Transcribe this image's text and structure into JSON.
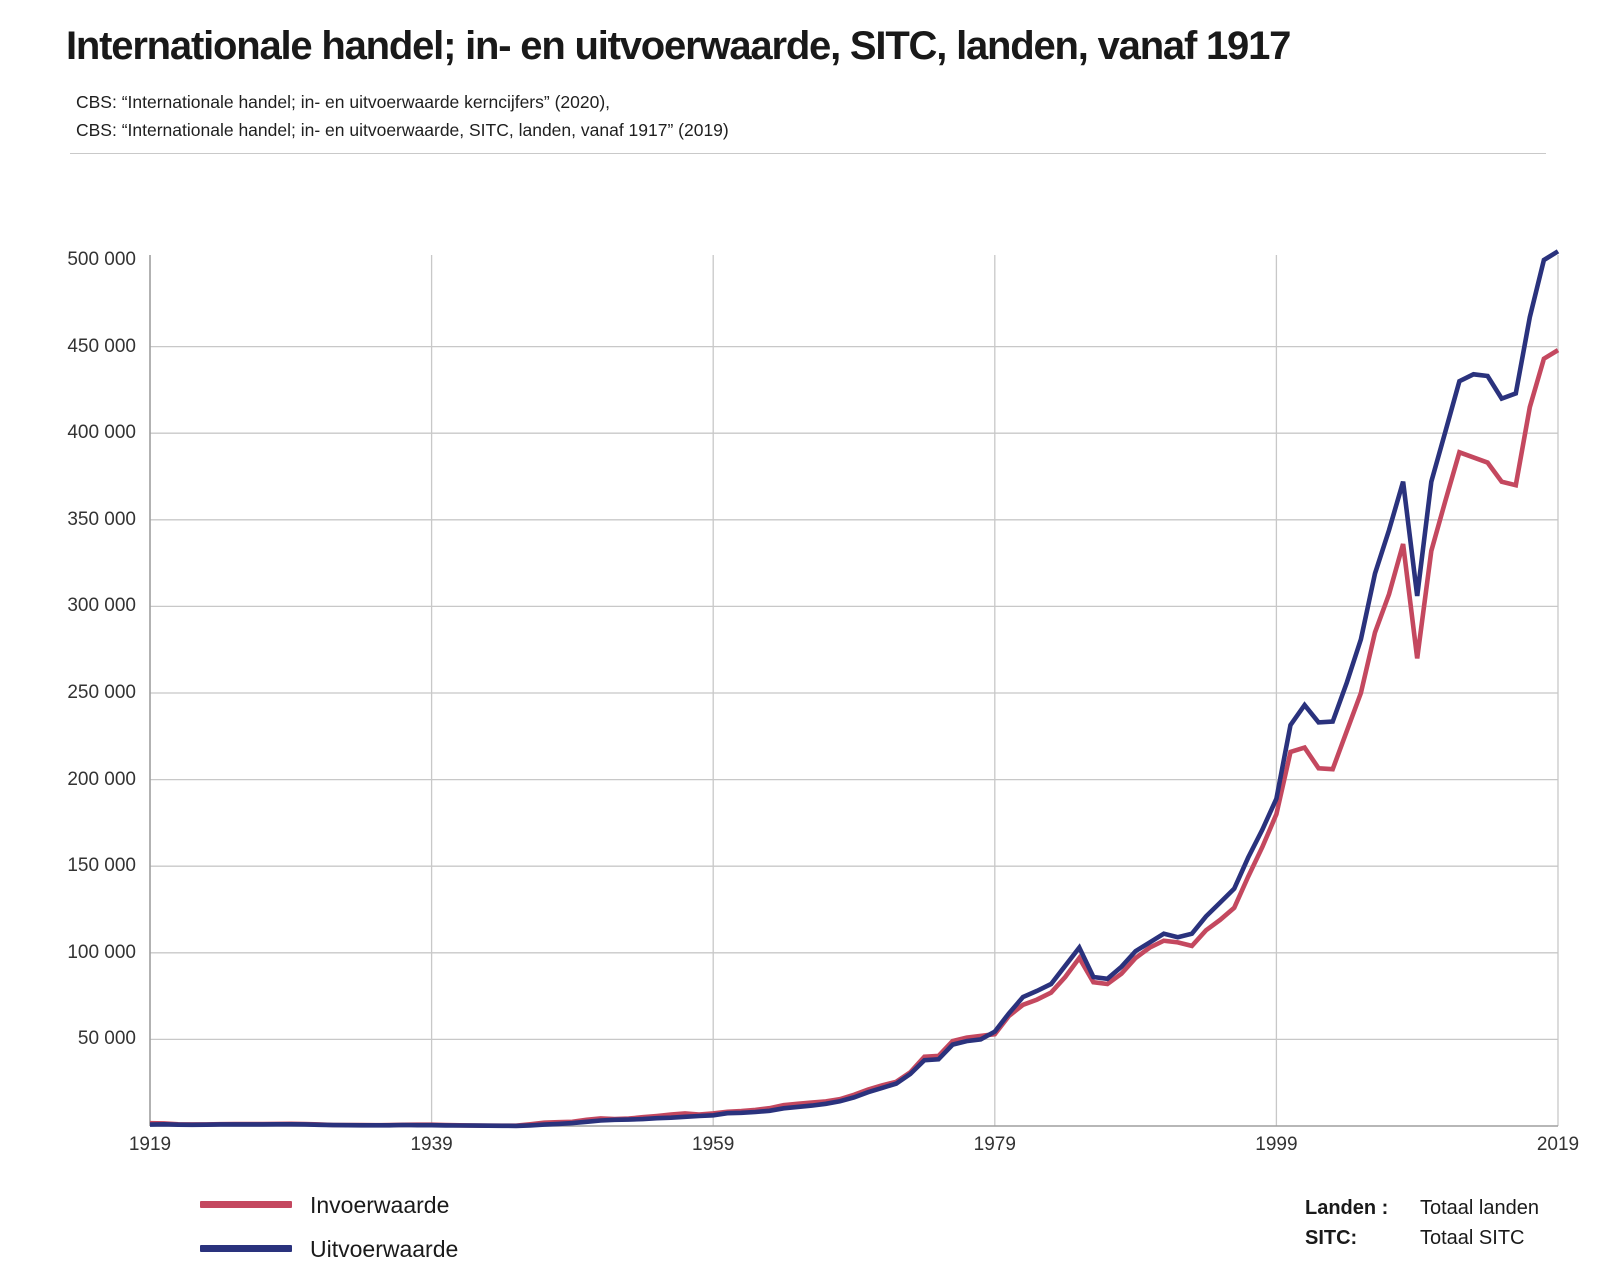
{
  "header": {
    "title": "Internationale handel; in- en uitvoerwaarde, SITC, landen, vanaf 1917",
    "source_line1": "CBS: “Internationale handel; in- en uitvoerwaarde kerncijfers” (2020),",
    "source_line2": "CBS: “Internationale handel; in- en uitvoerwaarde, SITC, landen, vanaf 1917” (2019)"
  },
  "chart_data": {
    "type": "line",
    "title": "Internationale handel; in- en uitvoerwaarde, SITC, landen, vanaf 1917",
    "xlabel": "",
    "ylabel": "",
    "xlim": [
      1919,
      2019
    ],
    "ylim": [
      0,
      500000
    ],
    "grid": true,
    "legend_position": "bottom-left",
    "xticks": [
      1919,
      1939,
      1959,
      1979,
      1999,
      2019
    ],
    "yticks": [
      50000,
      100000,
      150000,
      200000,
      250000,
      300000,
      350000,
      400000,
      450000,
      500000
    ],
    "ytick_labels": [
      "50 000",
      "100 000",
      "150 000",
      "200 000",
      "250 000",
      "300 000",
      "350 000",
      "400 000",
      "450 000",
      "500 000"
    ],
    "x": [
      1919,
      1920,
      1921,
      1922,
      1923,
      1924,
      1925,
      1926,
      1927,
      1928,
      1929,
      1930,
      1931,
      1932,
      1933,
      1934,
      1935,
      1936,
      1937,
      1938,
      1939,
      1940,
      1941,
      1942,
      1943,
      1944,
      1945,
      1946,
      1947,
      1948,
      1949,
      1950,
      1951,
      1952,
      1953,
      1954,
      1955,
      1956,
      1957,
      1958,
      1959,
      1960,
      1961,
      1962,
      1963,
      1964,
      1965,
      1966,
      1967,
      1968,
      1969,
      1970,
      1971,
      1972,
      1973,
      1974,
      1975,
      1976,
      1977,
      1978,
      1979,
      1980,
      1981,
      1982,
      1983,
      1984,
      1985,
      1986,
      1987,
      1988,
      1989,
      1990,
      1991,
      1992,
      1993,
      1994,
      1995,
      1996,
      1997,
      1998,
      1999,
      2000,
      2001,
      2002,
      2003,
      2004,
      2005,
      2006,
      2007,
      2008,
      2009,
      2010,
      2011,
      2012,
      2013,
      2014,
      2015,
      2016,
      2017,
      2018,
      2019
    ],
    "series": [
      {
        "name": "Invoerwaarde",
        "color": "#c4485f",
        "values": [
          1600,
          1500,
          1000,
          900,
          900,
          1050,
          1100,
          1100,
          1150,
          1200,
          1250,
          1100,
          900,
          600,
          550,
          500,
          450,
          500,
          700,
          730,
          750,
          500,
          400,
          300,
          200,
          150,
          150,
          1000,
          1900,
          2200,
          2400,
          3600,
          4400,
          4000,
          4300,
          5100,
          5800,
          6600,
          7300,
          6600,
          7300,
          8200,
          8600,
          9300,
          10300,
          12000,
          12800,
          13500,
          14200,
          15500,
          18000,
          21000,
          23500,
          25500,
          31000,
          40000,
          40500,
          49000,
          51000,
          52000,
          53000,
          63500,
          70000,
          73000,
          77000,
          86000,
          97000,
          83000,
          82000,
          88000,
          97000,
          103000,
          107000,
          106000,
          104000,
          113000,
          119000,
          126000,
          144000,
          161000,
          180000,
          216000,
          218500,
          206500,
          206000,
          228000,
          250000,
          285000,
          307000,
          336000,
          270000,
          332000,
          361000,
          389000,
          386000,
          383000,
          372000,
          370000,
          415000,
          443000,
          448000
        ]
      },
      {
        "name": "Uitvoerwaarde",
        "color": "#2a327d",
        "values": [
          800,
          1000,
          750,
          700,
          750,
          900,
          950,
          900,
          950,
          1000,
          1000,
          900,
          700,
          500,
          450,
          400,
          380,
          400,
          550,
          480,
          450,
          350,
          300,
          250,
          200,
          100,
          50,
          350,
          800,
          1200,
          1700,
          2400,
          3200,
          3600,
          3700,
          4000,
          4500,
          4800,
          5300,
          5800,
          6200,
          7400,
          7600,
          8100,
          8800,
          10200,
          11000,
          11800,
          12800,
          14300,
          16500,
          19500,
          22000,
          24500,
          30000,
          38000,
          38500,
          47000,
          49000,
          50000,
          54500,
          65000,
          74500,
          78000,
          82000,
          92500,
          103000,
          86000,
          85000,
          92000,
          101000,
          106000,
          111000,
          109000,
          111000,
          121000,
          129000,
          137000,
          155000,
          171000,
          189000,
          231500,
          243000,
          233000,
          233500,
          256000,
          281000,
          319000,
          344000,
          372000,
          306000,
          372000,
          401000,
          430000,
          434000,
          433000,
          420000,
          423000,
          467000,
          500000,
          505000
        ]
      }
    ]
  },
  "legend": {
    "items": [
      {
        "label": "Invoerwaarde",
        "color": "#c4485f"
      },
      {
        "label": "Uitvoerwaarde",
        "color": "#2a327d"
      }
    ]
  },
  "footer": {
    "landen_label": "Landen :",
    "landen_value": "Totaal landen",
    "sitc_label": "SITC:",
    "sitc_value": "Totaal SITC"
  },
  "colors": {
    "grid": "#c8c8c8",
    "axis": "#9f9f9f",
    "text": "#333333"
  }
}
